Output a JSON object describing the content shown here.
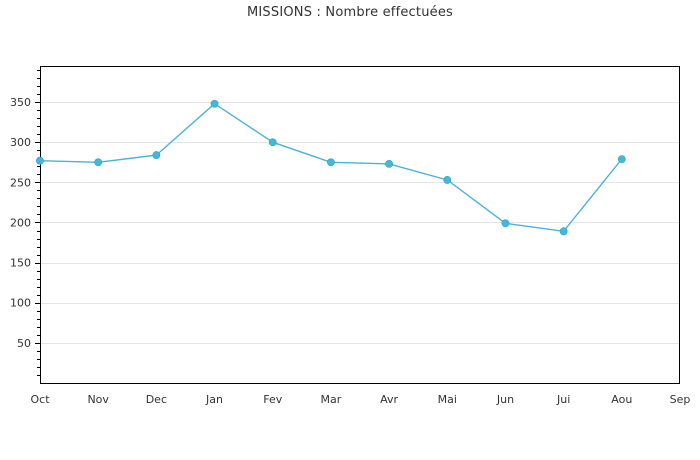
{
  "chart_data": {
    "type": "line",
    "title": "MISSIONS : Nombre effectuées",
    "xlabel": "",
    "ylabel": "",
    "categories": [
      "Oct",
      "Nov",
      "Dec",
      "Jan",
      "Fev",
      "Mar",
      "Avr",
      "Mai",
      "Jun",
      "Jui",
      "Aou",
      "Sep"
    ],
    "series": [
      {
        "values": [
          277,
          275,
          284,
          348,
          300,
          275,
          273,
          253,
          199,
          189,
          279,
          null
        ]
      }
    ],
    "ylim": [
      0,
      395
    ],
    "yticks": [
      50,
      100,
      150,
      200,
      250,
      300,
      350
    ],
    "grid": true,
    "legend": "none",
    "colors": {
      "line": "#4ab4d6",
      "marker": "#45b8da",
      "grid": "#e6e6e6",
      "axis": "#000000"
    }
  }
}
